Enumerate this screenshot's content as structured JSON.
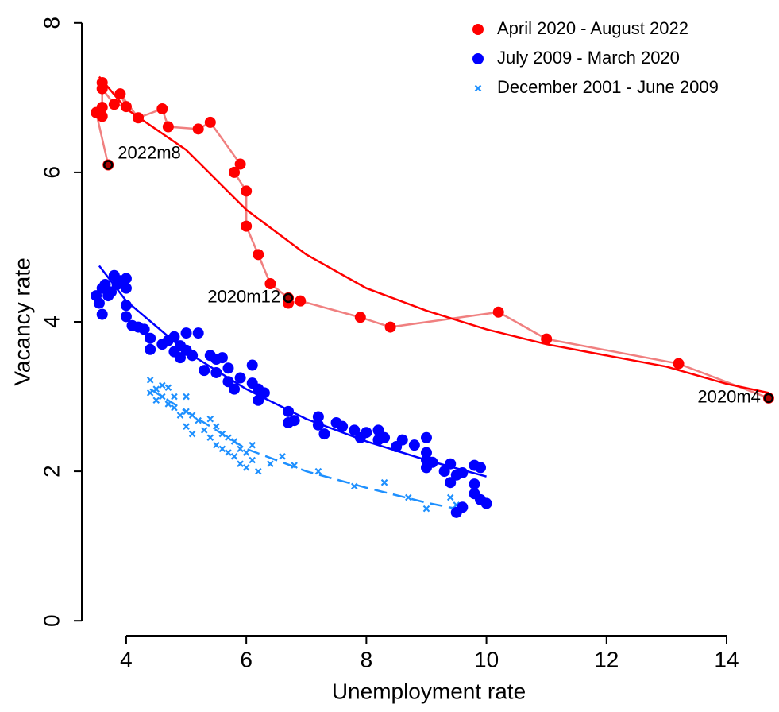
{
  "chart_data": {
    "type": "scatter",
    "x_label": "Unemployment rate",
    "y_label": "Vacancy rate",
    "xlim": [
      3.26,
      14.82
    ],
    "ylim": [
      -0.2,
      8.2
    ],
    "xticks": [
      4,
      6,
      8,
      10,
      12,
      14
    ],
    "yticks": [
      0,
      2,
      4,
      6,
      8
    ],
    "legend": "top-right",
    "series": [
      {
        "name": "April 2020 - August 2022",
        "color": "#ff0000",
        "marker": "circle",
        "connect": true,
        "line_color": "#f08080",
        "x": [
          14.7,
          13.2,
          11.0,
          10.2,
          8.4,
          7.9,
          6.9,
          6.7,
          6.7,
          6.4,
          6.2,
          6.0,
          6.0,
          5.8,
          5.9,
          5.4,
          5.2,
          4.7,
          4.6,
          4.2,
          3.9,
          4.0,
          3.8,
          3.6,
          3.6,
          3.6,
          3.6,
          3.5,
          3.7
        ],
        "values": [
          2.98,
          3.44,
          3.77,
          4.13,
          3.93,
          4.06,
          4.28,
          4.25,
          4.32,
          4.51,
          4.9,
          5.28,
          5.75,
          6.0,
          6.11,
          6.67,
          6.58,
          6.61,
          6.85,
          6.73,
          7.05,
          6.88,
          6.91,
          7.12,
          7.2,
          6.87,
          6.75,
          6.8,
          6.1
        ]
      },
      {
        "name": "July 2009 - March 2020",
        "color": "#0000ff",
        "marker": "circle",
        "connect": false,
        "x": [
          3.5,
          3.55,
          3.6,
          3.6,
          3.65,
          3.7,
          3.75,
          3.8,
          3.85,
          3.9,
          4.0,
          4.0,
          4.0,
          4.0,
          4.1,
          4.2,
          4.3,
          4.4,
          4.4,
          4.6,
          4.7,
          4.8,
          4.8,
          4.9,
          4.9,
          5.0,
          5.0,
          5.1,
          5.2,
          5.3,
          5.4,
          5.5,
          5.5,
          5.6,
          5.7,
          5.7,
          5.8,
          5.9,
          6.1,
          6.1,
          6.2,
          6.2,
          6.3,
          6.7,
          6.7,
          6.8,
          7.2,
          7.2,
          7.3,
          7.5,
          7.6,
          7.8,
          7.9,
          8.0,
          8.2,
          8.2,
          8.3,
          8.5,
          8.6,
          8.8,
          9.0,
          9.0,
          9.0,
          9.0,
          9.1,
          9.3,
          9.4,
          9.4,
          9.5,
          9.6,
          9.8,
          9.8,
          9.8,
          9.9,
          9.9,
          10.0,
          9.6,
          9.5
        ],
        "values": [
          4.35,
          4.25,
          4.1,
          4.45,
          4.5,
          4.35,
          4.4,
          4.62,
          4.5,
          4.55,
          4.58,
          4.45,
          4.22,
          4.07,
          3.95,
          3.93,
          3.9,
          3.78,
          3.63,
          3.7,
          3.75,
          3.8,
          3.6,
          3.52,
          3.68,
          3.85,
          3.62,
          3.55,
          3.85,
          3.35,
          3.55,
          3.5,
          3.32,
          3.52,
          3.2,
          3.38,
          3.1,
          3.25,
          3.42,
          3.18,
          2.95,
          3.1,
          3.05,
          2.8,
          2.65,
          2.68,
          2.73,
          2.62,
          2.5,
          2.65,
          2.6,
          2.55,
          2.45,
          2.52,
          2.55,
          2.42,
          2.45,
          2.33,
          2.42,
          2.35,
          2.45,
          2.25,
          2.15,
          2.05,
          2.12,
          2.0,
          2.1,
          1.85,
          1.95,
          1.98,
          2.08,
          1.83,
          1.7,
          2.05,
          1.62,
          1.57,
          1.52,
          1.45
        ]
      },
      {
        "name": "December 2001 - June 2009",
        "color": "#1e90ff",
        "marker": "cross",
        "connect": false,
        "x": [
          4.4,
          4.4,
          4.5,
          4.5,
          4.6,
          4.6,
          4.7,
          4.7,
          4.8,
          4.8,
          4.9,
          5.0,
          5.0,
          5.0,
          5.1,
          5.1,
          5.2,
          5.3,
          5.4,
          5.4,
          5.5,
          5.5,
          5.6,
          5.6,
          5.7,
          5.7,
          5.8,
          5.8,
          5.9,
          5.9,
          6.0,
          6.0,
          6.1,
          6.1,
          6.2,
          6.4,
          6.6,
          6.8,
          7.2,
          7.8,
          8.3,
          8.7,
          9.0,
          9.4,
          9.5
        ],
        "values": [
          3.22,
          3.05,
          3.1,
          2.95,
          3.15,
          3.0,
          3.12,
          2.9,
          2.85,
          3.0,
          2.75,
          2.8,
          3.0,
          2.6,
          2.5,
          2.75,
          2.68,
          2.55,
          2.7,
          2.45,
          2.6,
          2.35,
          2.3,
          2.5,
          2.45,
          2.25,
          2.4,
          2.2,
          2.3,
          2.1,
          2.25,
          2.05,
          2.15,
          2.35,
          2.0,
          2.1,
          2.2,
          2.08,
          2.0,
          1.8,
          1.85,
          1.65,
          1.5,
          1.65,
          1.55
        ]
      }
    ],
    "fits": [
      {
        "color": "#ff0000",
        "dash": false,
        "x": [
          3.55,
          4,
          5,
          6,
          7,
          8,
          9,
          10,
          11,
          12,
          13,
          14,
          14.7
        ],
        "values": [
          7.28,
          6.85,
          6.3,
          5.5,
          4.9,
          4.45,
          4.15,
          3.9,
          3.7,
          3.55,
          3.4,
          3.17,
          3.05
        ]
      },
      {
        "color": "#0000ff",
        "dash": false,
        "x": [
          3.55,
          4,
          5,
          6,
          7,
          8,
          9,
          10
        ],
        "values": [
          4.75,
          4.28,
          3.6,
          3.1,
          2.7,
          2.4,
          2.15,
          1.93
        ]
      },
      {
        "color": "#1e90ff",
        "dash": true,
        "x": [
          4.4,
          5,
          6,
          7,
          8,
          9,
          9.5
        ],
        "values": [
          3.1,
          2.8,
          2.3,
          2.0,
          1.78,
          1.58,
          1.5
        ]
      }
    ],
    "annotations": [
      {
        "text": "2022m8",
        "x": 3.7,
        "y": 6.1
      },
      {
        "text": "2020m12",
        "x": 6.7,
        "y": 4.32
      },
      {
        "text": "2020m4",
        "x": 14.7,
        "y": 2.98
      }
    ]
  }
}
